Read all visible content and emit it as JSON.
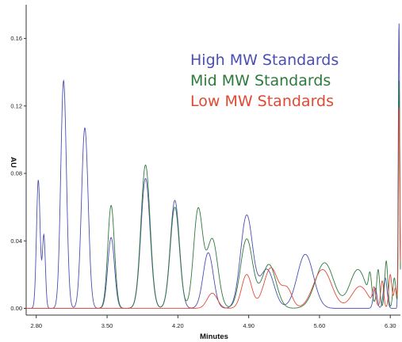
{
  "chart_data": {
    "type": "line",
    "title": "",
    "xlabel": "Minutes",
    "ylabel": "AU",
    "xlim": [
      2.7,
      6.4
    ],
    "ylim": [
      -0.004,
      0.18
    ],
    "x_ticks": [
      "2.80",
      "3.50",
      "4.20",
      "4.90",
      "5.60",
      "6.30"
    ],
    "y_ticks": [
      "0.00",
      "0.04",
      "0.08",
      "0.12",
      "0.16"
    ],
    "legend_position": "top-right",
    "grid": false,
    "series": [
      {
        "name": "High MW Standards",
        "color": "#4a4fb0",
        "peaks": [
          {
            "rt": 2.82,
            "height": 0.076,
            "width": 0.018
          },
          {
            "rt": 2.875,
            "height": 0.043,
            "width": 0.015
          },
          {
            "rt": 3.07,
            "height": 0.135,
            "width": 0.028
          },
          {
            "rt": 3.28,
            "height": 0.107,
            "width": 0.033
          },
          {
            "rt": 3.54,
            "height": 0.042,
            "width": 0.033
          },
          {
            "rt": 3.88,
            "height": 0.077,
            "width": 0.045
          },
          {
            "rt": 4.17,
            "height": 0.064,
            "width": 0.045
          },
          {
            "rt": 4.5,
            "height": 0.033,
            "width": 0.05
          },
          {
            "rt": 4.88,
            "height": 0.055,
            "width": 0.06
          },
          {
            "rt": 5.08,
            "height": 0.023,
            "width": 0.07
          },
          {
            "rt": 5.46,
            "height": 0.032,
            "width": 0.08
          },
          {
            "rt": 6.15,
            "height": 0.012,
            "width": 0.018
          },
          {
            "rt": 6.25,
            "height": 0.018,
            "width": 0.018
          },
          {
            "rt": 6.386,
            "height": 0.17,
            "width": 0.007
          }
        ]
      },
      {
        "name": "Mid MW Standards",
        "color": "#2e7a3c",
        "peaks": [
          {
            "rt": 3.54,
            "height": 0.061,
            "width": 0.033
          },
          {
            "rt": 3.88,
            "height": 0.085,
            "width": 0.045
          },
          {
            "rt": 4.17,
            "height": 0.06,
            "width": 0.045
          },
          {
            "rt": 4.4,
            "height": 0.058,
            "width": 0.045
          },
          {
            "rt": 4.54,
            "height": 0.041,
            "width": 0.055
          },
          {
            "rt": 4.88,
            "height": 0.041,
            "width": 0.06
          },
          {
            "rt": 5.1,
            "height": 0.026,
            "width": 0.07
          },
          {
            "rt": 5.65,
            "height": 0.027,
            "width": 0.09
          },
          {
            "rt": 5.98,
            "height": 0.023,
            "width": 0.08
          },
          {
            "rt": 6.1,
            "height": 0.014,
            "width": 0.015
          },
          {
            "rt": 6.18,
            "height": 0.022,
            "width": 0.015
          },
          {
            "rt": 6.26,
            "height": 0.028,
            "width": 0.015
          },
          {
            "rt": 6.34,
            "height": 0.018,
            "width": 0.015
          },
          {
            "rt": 6.387,
            "height": 0.135,
            "width": 0.007
          }
        ]
      },
      {
        "name": "Low MW Standards",
        "color": "#e04a35",
        "peaks": [
          {
            "rt": 4.54,
            "height": 0.009,
            "width": 0.05
          },
          {
            "rt": 4.88,
            "height": 0.02,
            "width": 0.05
          },
          {
            "rt": 5.12,
            "height": 0.024,
            "width": 0.07
          },
          {
            "rt": 5.28,
            "height": 0.011,
            "width": 0.05
          },
          {
            "rt": 5.63,
            "height": 0.023,
            "width": 0.09
          },
          {
            "rt": 6.0,
            "height": 0.013,
            "width": 0.08
          },
          {
            "rt": 6.14,
            "height": 0.01,
            "width": 0.015
          },
          {
            "rt": 6.22,
            "height": 0.016,
            "width": 0.015
          },
          {
            "rt": 6.3,
            "height": 0.02,
            "width": 0.015
          },
          {
            "rt": 6.35,
            "height": 0.012,
            "width": 0.015
          },
          {
            "rt": 6.388,
            "height": 0.12,
            "width": 0.007
          }
        ]
      }
    ]
  }
}
